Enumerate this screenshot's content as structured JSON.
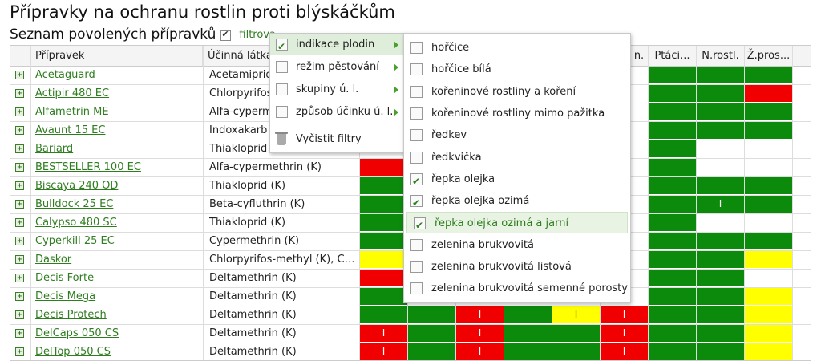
{
  "title": "Přípravky na ochranu rostlin proti blýskáčkům",
  "subtitle": "Seznam povolených přípravků",
  "filter_link": "filtrova",
  "columns": {
    "name": "Přípravek",
    "substance": "Účinná látka",
    "partial": "n.",
    "birds": "Ptáci...",
    "nontarget": "N.rostl.",
    "last": "Ž.pros..."
  },
  "rows": [
    {
      "name": "Acetaguard",
      "substance": "Acetamiprid",
      "cells": [
        "",
        "",
        "",
        "",
        "",
        "",
        "g",
        "g",
        "g"
      ]
    },
    {
      "name": "Actipir 480 EC",
      "substance": "Chlorpyrifos",
      "cells": [
        "",
        "",
        "",
        "",
        "",
        "",
        "g",
        "g",
        "r"
      ]
    },
    {
      "name": "Alfametrin ME",
      "substance": "Alfa-cypermethrin",
      "cells": [
        "",
        "",
        "",
        "",
        "",
        "",
        "g",
        "g",
        "g"
      ]
    },
    {
      "name": "Avaunt 15 EC",
      "substance": "Indoxakarb",
      "cells": [
        "",
        "",
        "",
        "",
        "",
        "",
        "g",
        "g",
        "g"
      ]
    },
    {
      "name": "Bariard",
      "substance": "Thiakloprid",
      "cells": [
        "",
        "",
        "",
        "",
        "",
        "",
        "g",
        "w",
        "w"
      ]
    },
    {
      "name": "BESTSELLER 100 EC",
      "substance": "Alfa-cypermethrin (K)",
      "cells": [
        "r",
        "",
        "",
        "",
        "",
        "",
        "g",
        "w",
        "w"
      ]
    },
    {
      "name": "Biscaya 240 OD",
      "substance": "Thiakloprid (K)",
      "cells": [
        "g",
        "",
        "",
        "",
        "",
        "",
        "g",
        "g",
        "g"
      ]
    },
    {
      "name": "Bulldock 25 EC",
      "substance": "Beta-cyfluthrin (K)",
      "cells": [
        "g",
        "",
        "",
        "",
        "",
        "",
        "g",
        "g:I",
        "g"
      ]
    },
    {
      "name": "Calypso 480 SC",
      "substance": "Thiakloprid (K)",
      "cells": [
        "g",
        "",
        "",
        "",
        "",
        "",
        "g",
        "w",
        "w"
      ]
    },
    {
      "name": "Cyperkill 25 EC",
      "substance": "Cypermethrin (K)",
      "cells": [
        "g",
        "",
        "",
        "",
        "",
        "",
        "g",
        "g",
        "g"
      ]
    },
    {
      "name": "Daskor",
      "substance": "Chlorpyrifos-methyl (K), Cype...",
      "cells": [
        "y",
        "",
        "",
        "",
        "",
        "",
        "g",
        "g",
        "y"
      ]
    },
    {
      "name": "Decis Forte",
      "substance": "Deltamethrin (K)",
      "cells": [
        "r",
        "",
        "",
        "",
        "",
        "",
        "g",
        "g",
        "w"
      ]
    },
    {
      "name": "Decis Mega",
      "substance": "Deltamethrin (K)",
      "cells": [
        "g",
        "",
        "",
        "",
        "",
        "",
        "g",
        "g",
        "y"
      ]
    },
    {
      "name": "Decis Protech",
      "substance": "Deltamethrin (K)",
      "cells": [
        "g",
        "g",
        "r:I",
        "g",
        "y:I",
        "r:I",
        "g",
        "g",
        "y"
      ]
    },
    {
      "name": "DelCaps 050 CS",
      "substance": "Deltamethrin (K)",
      "cells": [
        "r:I",
        "g",
        "r:I",
        "g",
        "g",
        "r:I",
        "g",
        "g",
        "y"
      ]
    },
    {
      "name": "DelTop 050 CS",
      "substance": "Deltamethrin (K)",
      "cells": [
        "r:I",
        "g",
        "r:I",
        "g",
        "g",
        "r:I",
        "g",
        "g",
        "y"
      ]
    }
  ],
  "menu": {
    "items": [
      {
        "label": "indikace plodin",
        "checked": true,
        "arrow": true,
        "active": true
      },
      {
        "label": "režim pěstování",
        "checked": false,
        "arrow": true,
        "active": false
      },
      {
        "label": "skupiny ú. l.",
        "checked": false,
        "arrow": true,
        "active": false
      },
      {
        "label": "způsob účinku ú. l.",
        "checked": false,
        "arrow": true,
        "active": false
      }
    ],
    "clear": "Vyčistit filtry"
  },
  "submenu": [
    {
      "label": "hořčice",
      "checked": false
    },
    {
      "label": "hořčice bílá",
      "checked": false
    },
    {
      "label": "kořeninové rostliny a koření",
      "checked": false
    },
    {
      "label": "kořeninové rostliny mimo pažitka",
      "checked": false
    },
    {
      "label": "ředkev",
      "checked": false
    },
    {
      "label": "ředkvička",
      "checked": false
    },
    {
      "label": "řepka olejka",
      "checked": true
    },
    {
      "label": "řepka olejka ozimá",
      "checked": true
    },
    {
      "label": "řepka olejka ozimá a jarní",
      "checked": true,
      "highlight": true
    },
    {
      "label": "zelenina brukvovitá",
      "checked": false
    },
    {
      "label": "zelenina brukvovitá listová",
      "checked": false
    },
    {
      "label": "zelenina brukvovitá semenné porosty",
      "checked": false
    }
  ],
  "colors": {
    "green": "#0b8a0b",
    "red": "#f00000",
    "yellow": "#ffff00",
    "link": "#2e7d1f"
  }
}
